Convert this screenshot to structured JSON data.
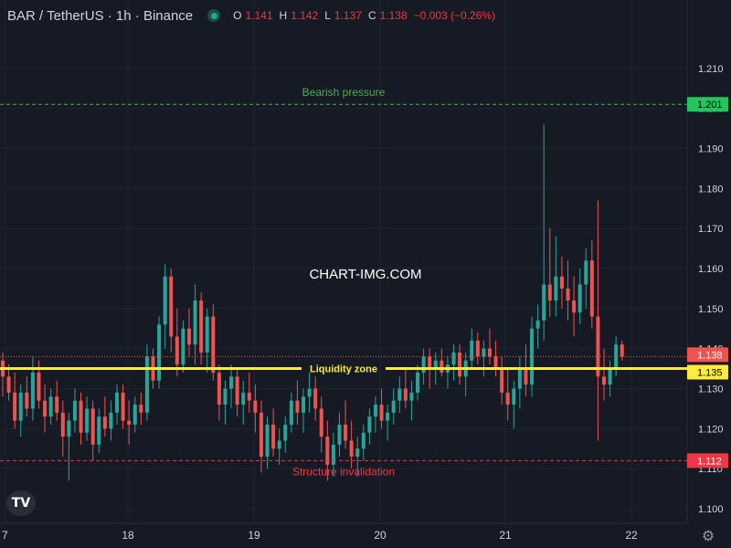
{
  "header": {
    "symbol": "BAR / TetherUS · 1h · Binance",
    "o_label": "O",
    "o_value": "1.141",
    "h_label": "H",
    "h_value": "1.142",
    "l_label": "L",
    "l_value": "1.137",
    "c_label": "C",
    "c_value": "1.138",
    "change": "−0.003 (−0.26%)"
  },
  "watermark": "CHART-IMG.COM",
  "logo_text": "TV",
  "colors": {
    "background": "#161a25",
    "grid": "#1f2431",
    "up": "#26a69a",
    "down": "#ef5350",
    "bearish_line": "#4caf50",
    "liquidity": "#ffeb3b",
    "invalidation": "#f23645"
  },
  "chart_data": {
    "type": "candlestick",
    "x_ticks": [
      "7",
      "18",
      "19",
      "20",
      "21",
      "22"
    ],
    "y_ticks": [
      "1.100",
      "1.110",
      "1.120",
      "1.130",
      "1.140",
      "1.150",
      "1.160",
      "1.170",
      "1.180",
      "1.190",
      "1.200",
      "1.210"
    ],
    "ylim": [
      1.095,
      1.214
    ],
    "grid": true,
    "levels": [
      {
        "label": "Bearish pressure",
        "price": "1.201",
        "style": "dashed",
        "color": "#4caf50"
      },
      {
        "label": "Liquidity zone",
        "price": "1.135",
        "style": "solid",
        "color": "#ffeb3b"
      },
      {
        "label": "Structure invalidation",
        "price": "1.112",
        "style": "dashed",
        "color": "#f23645"
      }
    ],
    "last_price": "1.138",
    "candles": [
      [
        1.137,
        1.139,
        1.128,
        1.133
      ],
      [
        1.133,
        1.136,
        1.127,
        1.129
      ],
      [
        1.129,
        1.134,
        1.12,
        1.122
      ],
      [
        1.122,
        1.131,
        1.118,
        1.129
      ],
      [
        1.129,
        1.133,
        1.123,
        1.125
      ],
      [
        1.125,
        1.138,
        1.122,
        1.134
      ],
      [
        1.134,
        1.137,
        1.125,
        1.127
      ],
      [
        1.127,
        1.131,
        1.119,
        1.123
      ],
      [
        1.123,
        1.13,
        1.121,
        1.128
      ],
      [
        1.128,
        1.132,
        1.122,
        1.124
      ],
      [
        1.124,
        1.127,
        1.113,
        1.118
      ],
      [
        1.118,
        1.124,
        1.107,
        1.122
      ],
      [
        1.122,
        1.13,
        1.119,
        1.127
      ],
      [
        1.127,
        1.129,
        1.116,
        1.119
      ],
      [
        1.119,
        1.128,
        1.117,
        1.125
      ],
      [
        1.125,
        1.127,
        1.112,
        1.116
      ],
      [
        1.116,
        1.125,
        1.114,
        1.123
      ],
      [
        1.123,
        1.128,
        1.118,
        1.12
      ],
      [
        1.12,
        1.127,
        1.117,
        1.124
      ],
      [
        1.124,
        1.131,
        1.121,
        1.129
      ],
      [
        1.129,
        1.131,
        1.12,
        1.122
      ],
      [
        1.122,
        1.127,
        1.116,
        1.121
      ],
      [
        1.121,
        1.128,
        1.119,
        1.126
      ],
      [
        1.126,
        1.129,
        1.121,
        1.124
      ],
      [
        1.124,
        1.141,
        1.122,
        1.138
      ],
      [
        1.138,
        1.14,
        1.13,
        1.132
      ],
      [
        1.132,
        1.148,
        1.13,
        1.146
      ],
      [
        1.146,
        1.161,
        1.14,
        1.158
      ],
      [
        1.158,
        1.16,
        1.139,
        1.143
      ],
      [
        1.143,
        1.15,
        1.133,
        1.136
      ],
      [
        1.136,
        1.147,
        1.134,
        1.145
      ],
      [
        1.145,
        1.15,
        1.138,
        1.141
      ],
      [
        1.141,
        1.156,
        1.136,
        1.152
      ],
      [
        1.152,
        1.154,
        1.136,
        1.139
      ],
      [
        1.139,
        1.15,
        1.134,
        1.148
      ],
      [
        1.148,
        1.151,
        1.132,
        1.134
      ],
      [
        1.134,
        1.136,
        1.122,
        1.126
      ],
      [
        1.126,
        1.132,
        1.121,
        1.13
      ],
      [
        1.13,
        1.136,
        1.125,
        1.133
      ],
      [
        1.133,
        1.135,
        1.123,
        1.126
      ],
      [
        1.126,
        1.132,
        1.121,
        1.129
      ],
      [
        1.129,
        1.134,
        1.124,
        1.127
      ],
      [
        1.127,
        1.131,
        1.119,
        1.124
      ],
      [
        1.124,
        1.127,
        1.109,
        1.113
      ],
      [
        1.113,
        1.123,
        1.11,
        1.121
      ],
      [
        1.121,
        1.125,
        1.113,
        1.115
      ],
      [
        1.115,
        1.12,
        1.111,
        1.117
      ],
      [
        1.117,
        1.123,
        1.114,
        1.121
      ],
      [
        1.121,
        1.129,
        1.119,
        1.127
      ],
      [
        1.127,
        1.132,
        1.121,
        1.124
      ],
      [
        1.124,
        1.13,
        1.119,
        1.128
      ],
      [
        1.128,
        1.134,
        1.124,
        1.13
      ],
      [
        1.13,
        1.133,
        1.122,
        1.125
      ],
      [
        1.125,
        1.128,
        1.114,
        1.118
      ],
      [
        1.118,
        1.122,
        1.107,
        1.111
      ],
      [
        1.111,
        1.119,
        1.108,
        1.116
      ],
      [
        1.116,
        1.124,
        1.113,
        1.121
      ],
      [
        1.121,
        1.127,
        1.115,
        1.117
      ],
      [
        1.117,
        1.122,
        1.11,
        1.113
      ],
      [
        1.113,
        1.118,
        1.108,
        1.115
      ],
      [
        1.115,
        1.121,
        1.112,
        1.119
      ],
      [
        1.119,
        1.125,
        1.116,
        1.123
      ],
      [
        1.123,
        1.128,
        1.119,
        1.126
      ],
      [
        1.126,
        1.13,
        1.12,
        1.122
      ],
      [
        1.122,
        1.126,
        1.117,
        1.124
      ],
      [
        1.124,
        1.13,
        1.121,
        1.127
      ],
      [
        1.127,
        1.133,
        1.124,
        1.13
      ],
      [
        1.13,
        1.135,
        1.125,
        1.127
      ],
      [
        1.127,
        1.132,
        1.122,
        1.129
      ],
      [
        1.129,
        1.136,
        1.127,
        1.134
      ],
      [
        1.134,
        1.14,
        1.131,
        1.138
      ],
      [
        1.138,
        1.14,
        1.13,
        1.135
      ],
      [
        1.135,
        1.139,
        1.131,
        1.137
      ],
      [
        1.137,
        1.14,
        1.133,
        1.134
      ],
      [
        1.134,
        1.138,
        1.13,
        1.136
      ],
      [
        1.136,
        1.141,
        1.132,
        1.139
      ],
      [
        1.139,
        1.141,
        1.131,
        1.133
      ],
      [
        1.133,
        1.139,
        1.128,
        1.137
      ],
      [
        1.137,
        1.145,
        1.135,
        1.142
      ],
      [
        1.142,
        1.144,
        1.136,
        1.138
      ],
      [
        1.138,
        1.142,
        1.133,
        1.14
      ],
      [
        1.14,
        1.145,
        1.136,
        1.138
      ],
      [
        1.138,
        1.142,
        1.133,
        1.135
      ],
      [
        1.135,
        1.138,
        1.126,
        1.129
      ],
      [
        1.129,
        1.135,
        1.122,
        1.126
      ],
      [
        1.126,
        1.132,
        1.12,
        1.13
      ],
      [
        1.13,
        1.138,
        1.125,
        1.135
      ],
      [
        1.135,
        1.141,
        1.128,
        1.131
      ],
      [
        1.131,
        1.148,
        1.128,
        1.145
      ],
      [
        1.145,
        1.151,
        1.14,
        1.147
      ],
      [
        1.147,
        1.196,
        1.142,
        1.156
      ],
      [
        1.156,
        1.17,
        1.148,
        1.152
      ],
      [
        1.152,
        1.168,
        1.148,
        1.158
      ],
      [
        1.158,
        1.163,
        1.15,
        1.155
      ],
      [
        1.155,
        1.162,
        1.147,
        1.152
      ],
      [
        1.152,
        1.158,
        1.143,
        1.149
      ],
      [
        1.149,
        1.16,
        1.146,
        1.156
      ],
      [
        1.156,
        1.165,
        1.15,
        1.162
      ],
      [
        1.162,
        1.167,
        1.145,
        1.148
      ],
      [
        1.148,
        1.177,
        1.117,
        1.133
      ],
      [
        1.133,
        1.14,
        1.127,
        1.131
      ],
      [
        1.131,
        1.137,
        1.128,
        1.135
      ],
      [
        1.135,
        1.143,
        1.133,
        1.141
      ],
      [
        1.141,
        1.142,
        1.137,
        1.138
      ]
    ]
  }
}
